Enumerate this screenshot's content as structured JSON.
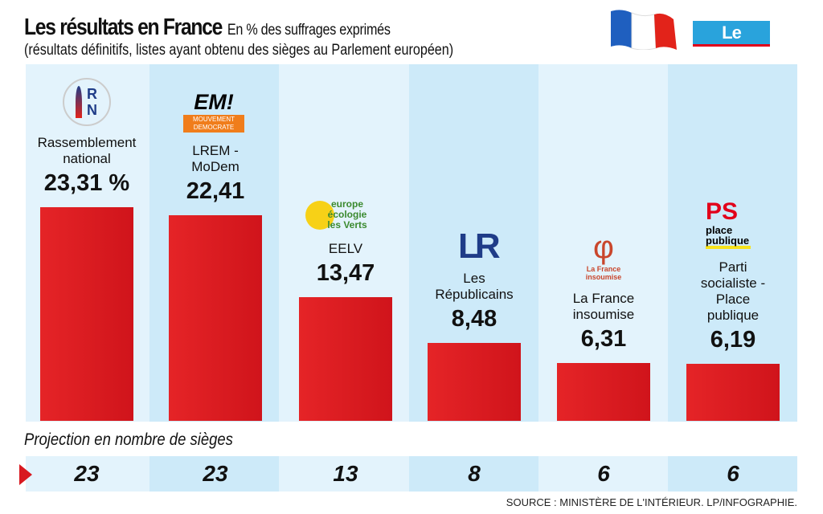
{
  "header": {
    "title": "Les résultats en France",
    "unit": "En % des suffrages exprimés",
    "subtitle": "(résultats définitifs, listes ayant obtenu des sièges au Parlement européen)",
    "brand": "Le Parisien"
  },
  "chart_data": {
    "type": "bar",
    "title": "Les résultats en France",
    "ylabel": "En % des suffrages exprimés",
    "categories": [
      "Rassemblement national",
      "LREM - MoDem",
      "EELV",
      "Les Républicains",
      "La France insoumise",
      "Parti socialiste - Place publique"
    ],
    "values": [
      23.31,
      22.41,
      13.47,
      8.48,
      6.31,
      6.19
    ],
    "value_labels": [
      "23,31 %",
      "22,41",
      "13,47",
      "8,48",
      "6,31",
      "6,19"
    ],
    "seats": [
      23,
      23,
      13,
      8,
      6,
      6
    ],
    "ylim": [
      0,
      25
    ],
    "colors": {
      "bar": "#e02125",
      "col_light": "#e3f3fc",
      "col_dark": "#cdeaf9"
    }
  },
  "logos": {
    "rn": "RN",
    "em": "EM!",
    "modem": "MOUVEMENT DEMOCRATE",
    "eelv": "europe écologie les Verts",
    "lr": "LR",
    "lfi": "La France insoumise",
    "ps": "PS",
    "pp": "place publique"
  },
  "labels": [
    [
      "Rassemblement",
      "national"
    ],
    [
      "LREM -",
      "MoDem"
    ],
    [
      "EELV"
    ],
    [
      "Les",
      "Républicains"
    ],
    [
      "La France",
      "insoumise"
    ],
    [
      "Parti",
      "socialiste -",
      "Place",
      "publique"
    ]
  ],
  "projection_title": "Projection en nombre de sièges",
  "source": "SOURCE : MINISTÈRE DE L'INTÉRIEUR.    LP/INFOGRAPHIE."
}
